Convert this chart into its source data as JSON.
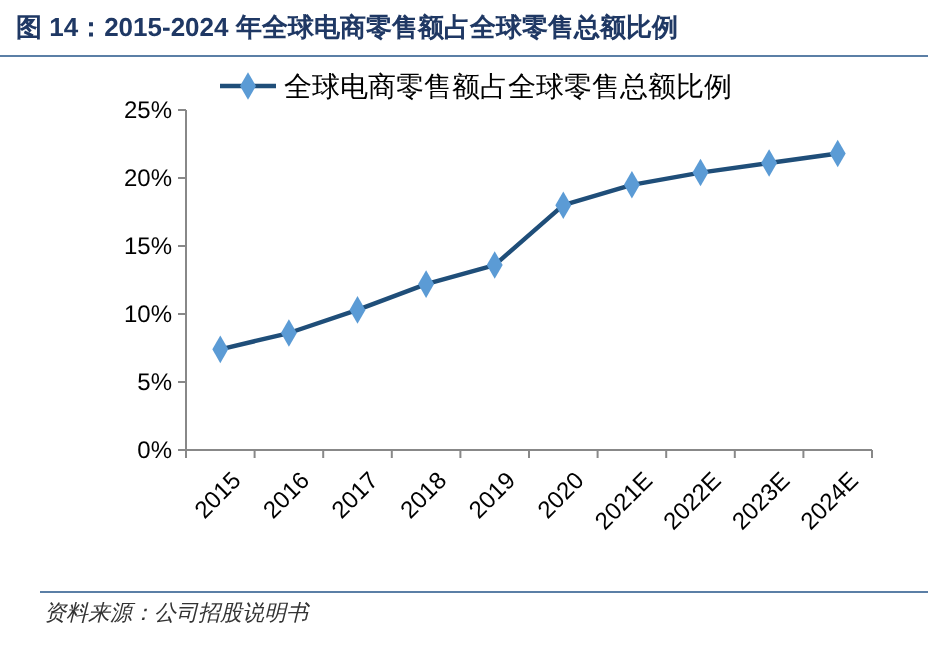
{
  "chart_data": {
    "type": "line",
    "title": "图 14：2015-2024 年全球电商零售额占全球零售总额比例",
    "categories": [
      "2015",
      "2016",
      "2017",
      "2018",
      "2019",
      "2020",
      "2021E",
      "2022E",
      "2023E",
      "2024E"
    ],
    "series": [
      {
        "name": "全球电商零售额占全球零售总额比例",
        "color": "#1f4e79",
        "values": [
          7.4,
          8.6,
          10.3,
          12.2,
          13.6,
          18.0,
          19.5,
          20.4,
          21.1,
          21.8
        ]
      }
    ],
    "ylim": [
      0,
      25
    ],
    "yticks": [
      {
        "value": 0,
        "label": "0%"
      },
      {
        "value": 5,
        "label": "5%"
      },
      {
        "value": 10,
        "label": "10%"
      },
      {
        "value": 15,
        "label": "15%"
      },
      {
        "value": 20,
        "label": "20%"
      },
      {
        "value": 25,
        "label": "25%"
      }
    ],
    "marker": "diamond",
    "legend": "top",
    "grid": false,
    "annotations": [
      "资料来源：公司招股说明书"
    ]
  }
}
